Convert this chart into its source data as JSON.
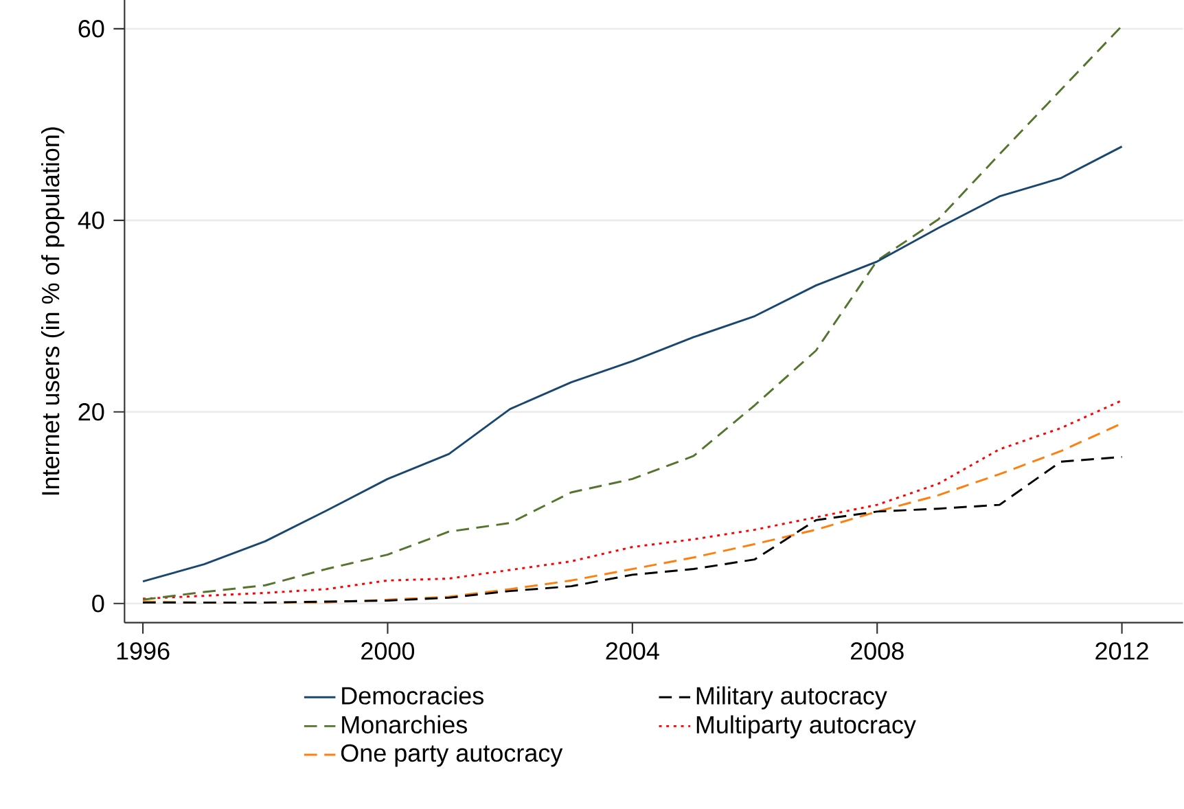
{
  "chart_data": {
    "type": "line",
    "ylabel": "Internet users (in % of population)",
    "x": [
      1996,
      1997,
      1998,
      1999,
      2000,
      2001,
      2002,
      2003,
      2004,
      2005,
      2006,
      2007,
      2008,
      2009,
      2010,
      2011,
      2012
    ],
    "series": [
      {
        "name": "Democracies",
        "color": "#1a476f",
        "line_style": "solid",
        "values": [
          2.3,
          4.1,
          6.5,
          9.7,
          13.0,
          15.6,
          20.3,
          23.1,
          25.3,
          27.8,
          30.0,
          33.2,
          35.7,
          39.2,
          42.5,
          44.4,
          47.7
        ]
      },
      {
        "name": "Military autocracy",
        "color": "#000000",
        "line_style": "dashed",
        "values": [
          0.1,
          0.1,
          0.1,
          0.2,
          0.3,
          0.6,
          1.3,
          1.8,
          3.0,
          3.6,
          4.6,
          8.7,
          9.6,
          9.9,
          10.3,
          14.8,
          15.3
        ]
      },
      {
        "name": "Monarchies",
        "color": "#55752f",
        "line_style": "dashed",
        "values": [
          0.4,
          1.2,
          1.9,
          3.6,
          5.1,
          7.5,
          8.4,
          11.6,
          13.0,
          15.4,
          20.7,
          26.4,
          35.8,
          40.1,
          46.9,
          53.6,
          60.3
        ]
      },
      {
        "name": "Multiparty autocracy",
        "color": "#ff0000",
        "line_style": "dotted",
        "values": [
          0.5,
          0.8,
          1.1,
          1.5,
          2.4,
          2.6,
          3.5,
          4.4,
          5.9,
          6.7,
          7.7,
          9.0,
          10.3,
          12.5,
          16.1,
          18.3,
          21.2
        ]
      },
      {
        "name": "One party autocracy",
        "color": "#ff7f0e",
        "line_style": "dashed",
        "values": [
          0.2,
          0.1,
          0.1,
          0.1,
          0.4,
          0.7,
          1.5,
          2.4,
          3.6,
          4.8,
          6.2,
          7.7,
          9.6,
          11.3,
          13.5,
          15.9,
          18.8
        ]
      }
    ],
    "xlim": [
      1995.7,
      2013
    ],
    "ylim": [
      -2,
      63
    ],
    "xticks": [
      1996,
      2000,
      2004,
      2008,
      2012
    ],
    "yticks": [
      0,
      20,
      40,
      60
    ],
    "grid": "y",
    "legend": "bottom",
    "marker": "none"
  }
}
